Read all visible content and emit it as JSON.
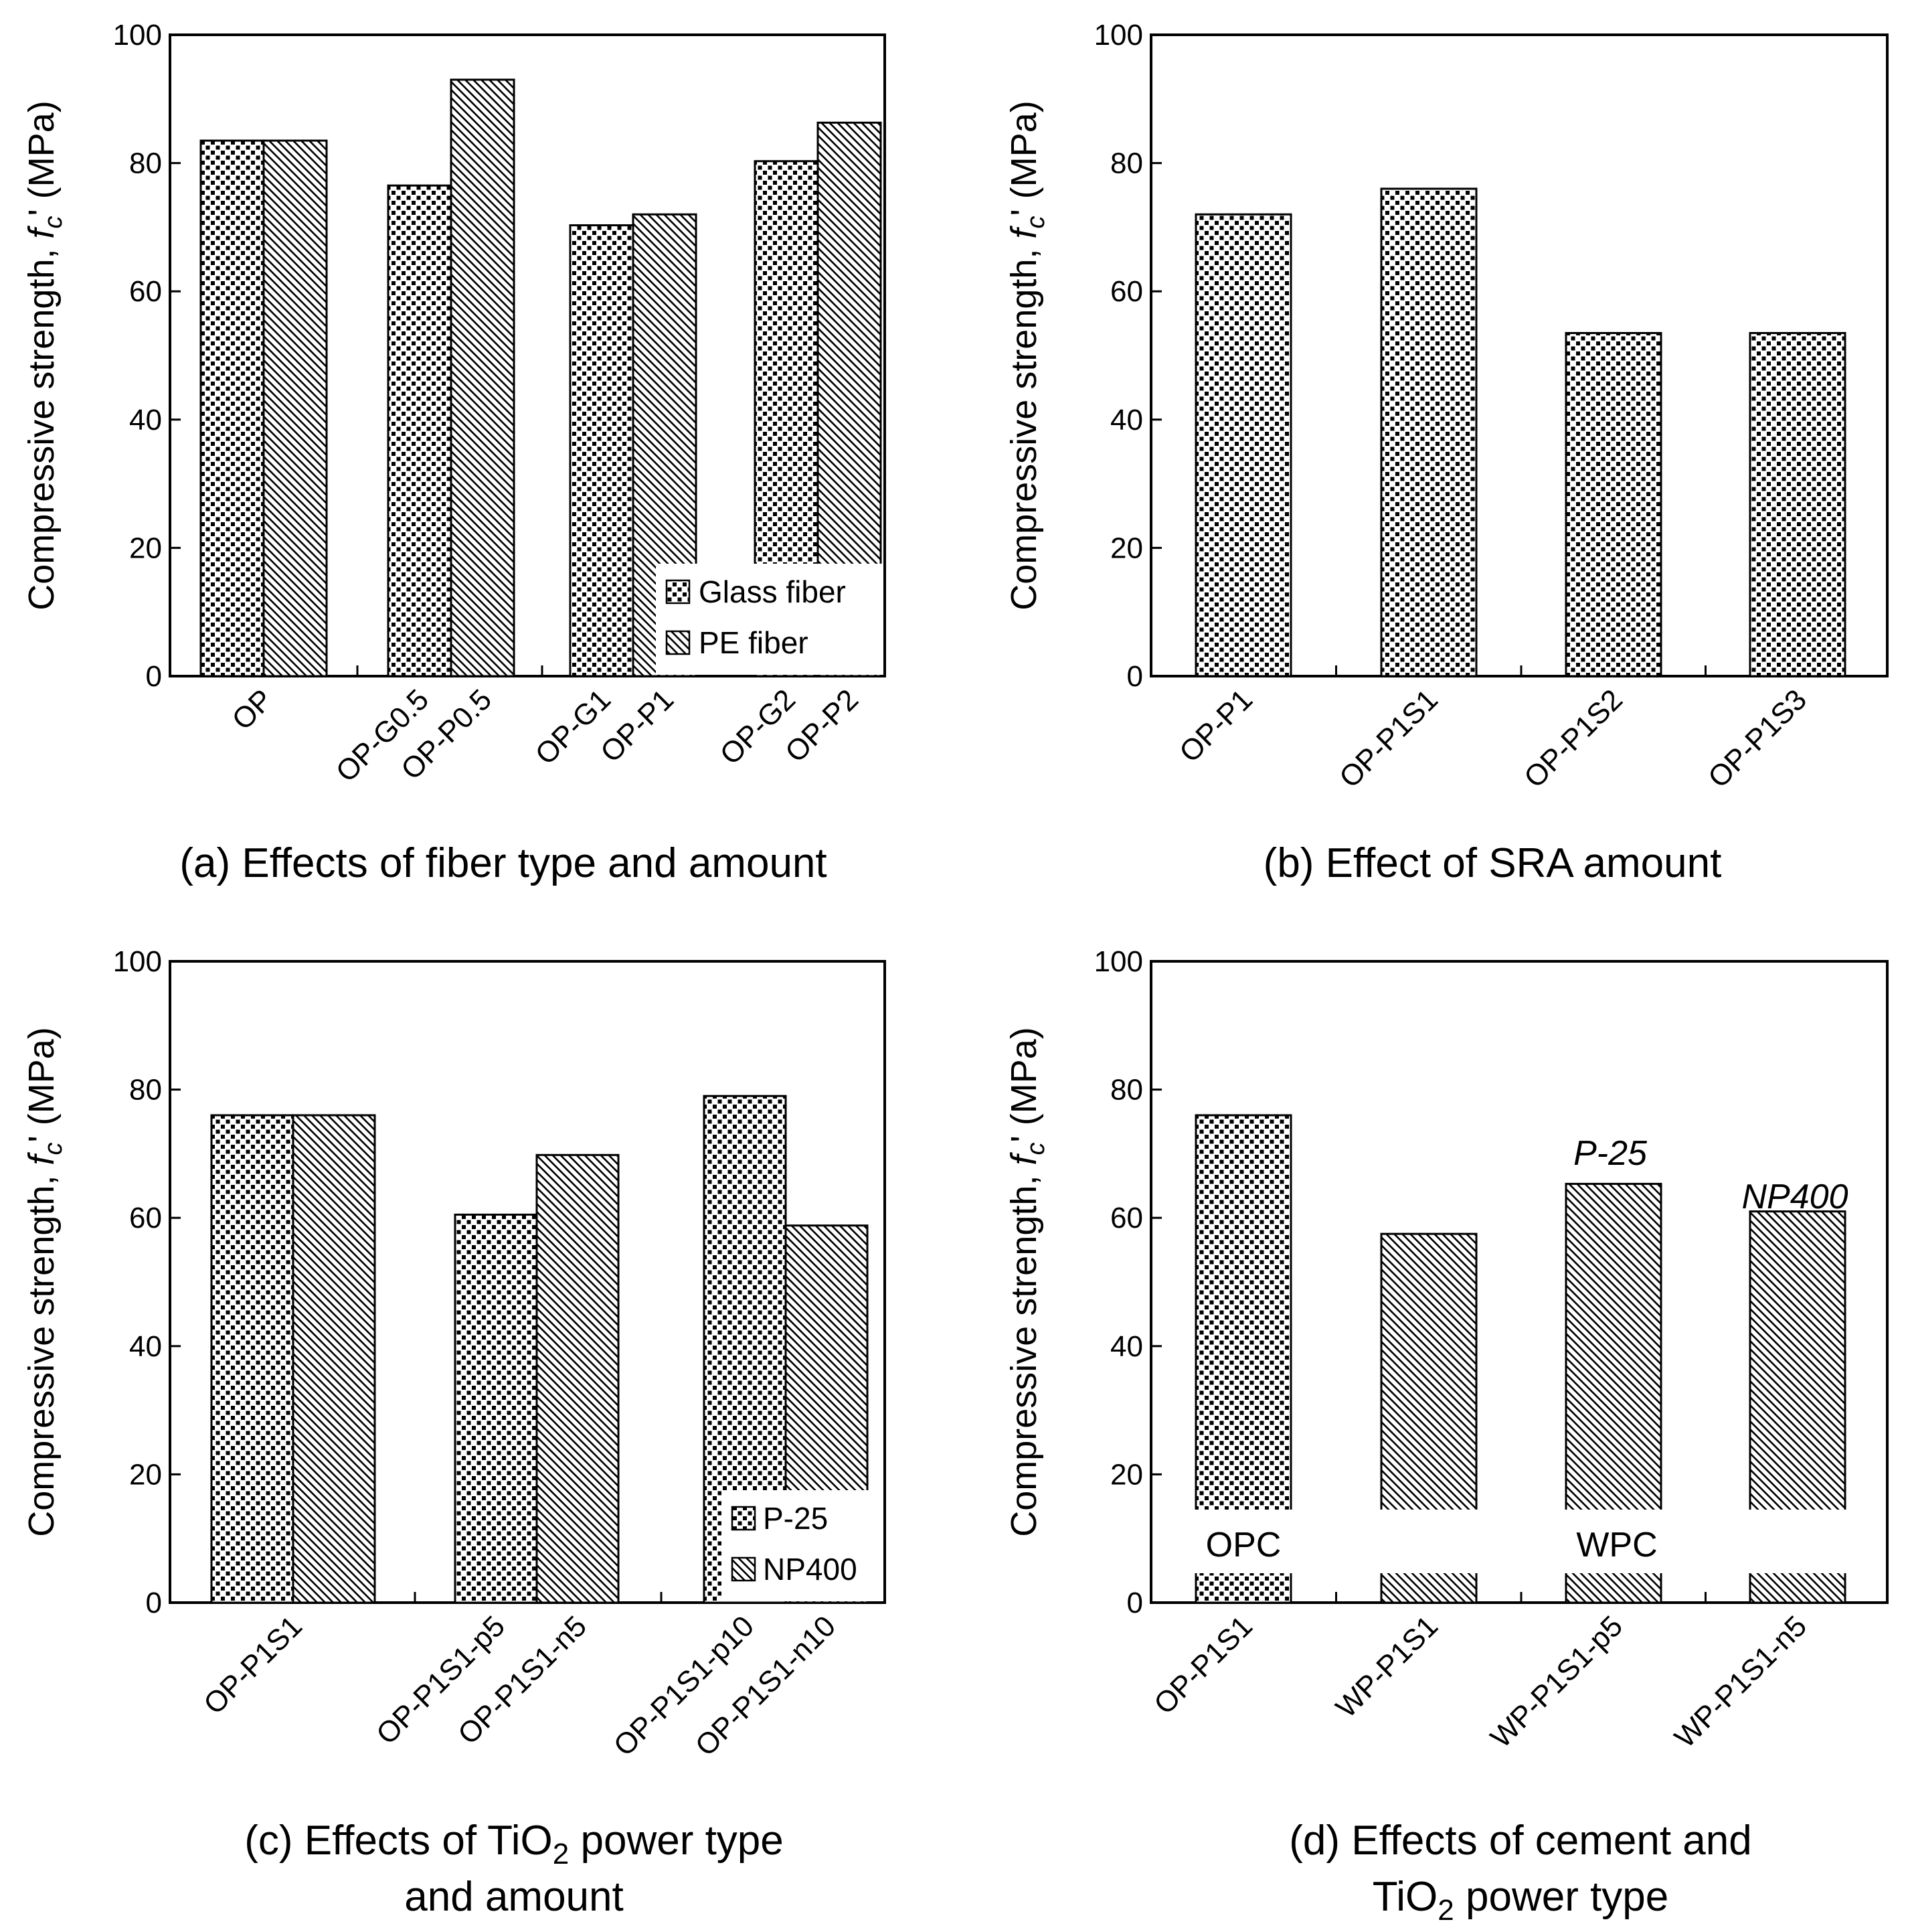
{
  "colors": {
    "ink": "#000000",
    "background": "#ffffff"
  },
  "y_axis_label": {
    "main": "Compressive strength, ",
    "var": "f",
    "sub": "c",
    "tail": "' (MPa)"
  },
  "chart_data": [
    {
      "id": "a",
      "type": "bar",
      "caption": "(a) Effects of fiber type and amount",
      "ylim": [
        0,
        100
      ],
      "yticks": [
        0,
        20,
        40,
        60,
        80,
        100
      ],
      "xlabel": "",
      "ylabel": "Compressive strength, f'c (MPa)",
      "legend": {
        "position": "bottom-right",
        "entries": [
          "Glass fiber",
          "PE fiber"
        ]
      },
      "bars": [
        {
          "label": "OP",
          "value": 83.5,
          "pattern": "dots",
          "group": 0,
          "slot": 0
        },
        {
          "label": "",
          "value": 83.5,
          "pattern": "hatch",
          "group": 0,
          "slot": 1
        },
        {
          "label": "OP-G0.5",
          "value": 76.5,
          "pattern": "dots",
          "group": 1,
          "slot": 0
        },
        {
          "label": "OP-P0.5",
          "value": 93,
          "pattern": "hatch",
          "group": 1,
          "slot": 1
        },
        {
          "label": "OP-G1",
          "value": 70.3,
          "pattern": "dots",
          "group": 2,
          "slot": 0
        },
        {
          "label": "OP-P1",
          "value": 72,
          "pattern": "hatch",
          "group": 2,
          "slot": 1
        },
        {
          "label": "OP-G2",
          "value": 80.3,
          "pattern": "dots",
          "group": 3,
          "slot": 0
        },
        {
          "label": "OP-P2",
          "value": 86.3,
          "pattern": "hatch",
          "group": 3,
          "slot": 1
        }
      ]
    },
    {
      "id": "b",
      "type": "bar",
      "caption": "(b) Effect of SRA amount",
      "ylim": [
        0,
        100
      ],
      "yticks": [
        0,
        20,
        40,
        60,
        80,
        100
      ],
      "xlabel": "",
      "ylabel": "Compressive strength, f'c (MPa)",
      "bars": [
        {
          "label": "OP-P1",
          "value": 72,
          "pattern": "dots",
          "group": 0,
          "slot": 0
        },
        {
          "label": "OP-P1S1",
          "value": 76,
          "pattern": "dots",
          "group": 1,
          "slot": 0
        },
        {
          "label": "OP-P1S2",
          "value": 53.5,
          "pattern": "dots",
          "group": 2,
          "slot": 0
        },
        {
          "label": "OP-P1S3",
          "value": 53.5,
          "pattern": "dots",
          "group": 3,
          "slot": 0
        }
      ]
    },
    {
      "id": "c",
      "type": "bar",
      "caption_parts": {
        "line1_pre": "(c) Effects of TiO",
        "line1_sub": "2",
        "line1_post": " power type",
        "line2": "and amount"
      },
      "ylim": [
        0,
        100
      ],
      "yticks": [
        0,
        20,
        40,
        60,
        80,
        100
      ],
      "xlabel": "",
      "ylabel": "Compressive strength, f'c (MPa)",
      "legend": {
        "position": "bottom-right",
        "entries": [
          "P-25",
          "NP400"
        ]
      },
      "bars": [
        {
          "label": "OP-P1S1",
          "value": 76,
          "pattern": "dots",
          "group": 0,
          "slot": 0
        },
        {
          "label": "",
          "value": 76,
          "pattern": "hatch",
          "group": 0,
          "slot": 1
        },
        {
          "label": "OP-P1S1-p5",
          "value": 60.5,
          "pattern": "dots",
          "group": 1,
          "slot": 0
        },
        {
          "label": "OP-P1S1-n5",
          "value": 69.8,
          "pattern": "hatch",
          "group": 1,
          "slot": 1
        },
        {
          "label": "OP-P1S1-p10",
          "value": 79,
          "pattern": "dots",
          "group": 2,
          "slot": 0
        },
        {
          "label": "OP-P1S1-n10",
          "value": 58.8,
          "pattern": "hatch",
          "group": 2,
          "slot": 1
        }
      ]
    },
    {
      "id": "d",
      "type": "bar",
      "caption_parts": {
        "line1": "(d) Effects of cement and",
        "line2_pre": "TiO",
        "line2_sub": "2",
        "line2_post": " power type"
      },
      "ylim": [
        0,
        100
      ],
      "yticks": [
        0,
        20,
        40,
        60,
        80,
        100
      ],
      "xlabel": "",
      "ylabel": "Compressive strength, f'c (MPa)",
      "annotations": [
        "OPC",
        "WPC",
        "P-25",
        "NP400"
      ],
      "bars": [
        {
          "label": "OP-P1S1",
          "value": 76,
          "pattern": "dots",
          "group": 0,
          "slot": 0
        },
        {
          "label": "WP-P1S1",
          "value": 57.5,
          "pattern": "hatch",
          "group": 1,
          "slot": 0
        },
        {
          "label": "WP-P1S1-p5",
          "value": 65.3,
          "pattern": "hatch",
          "group": 2,
          "slot": 0
        },
        {
          "label": "WP-P1S1-n5",
          "value": 61,
          "pattern": "hatch",
          "group": 3,
          "slot": 0
        }
      ]
    }
  ]
}
